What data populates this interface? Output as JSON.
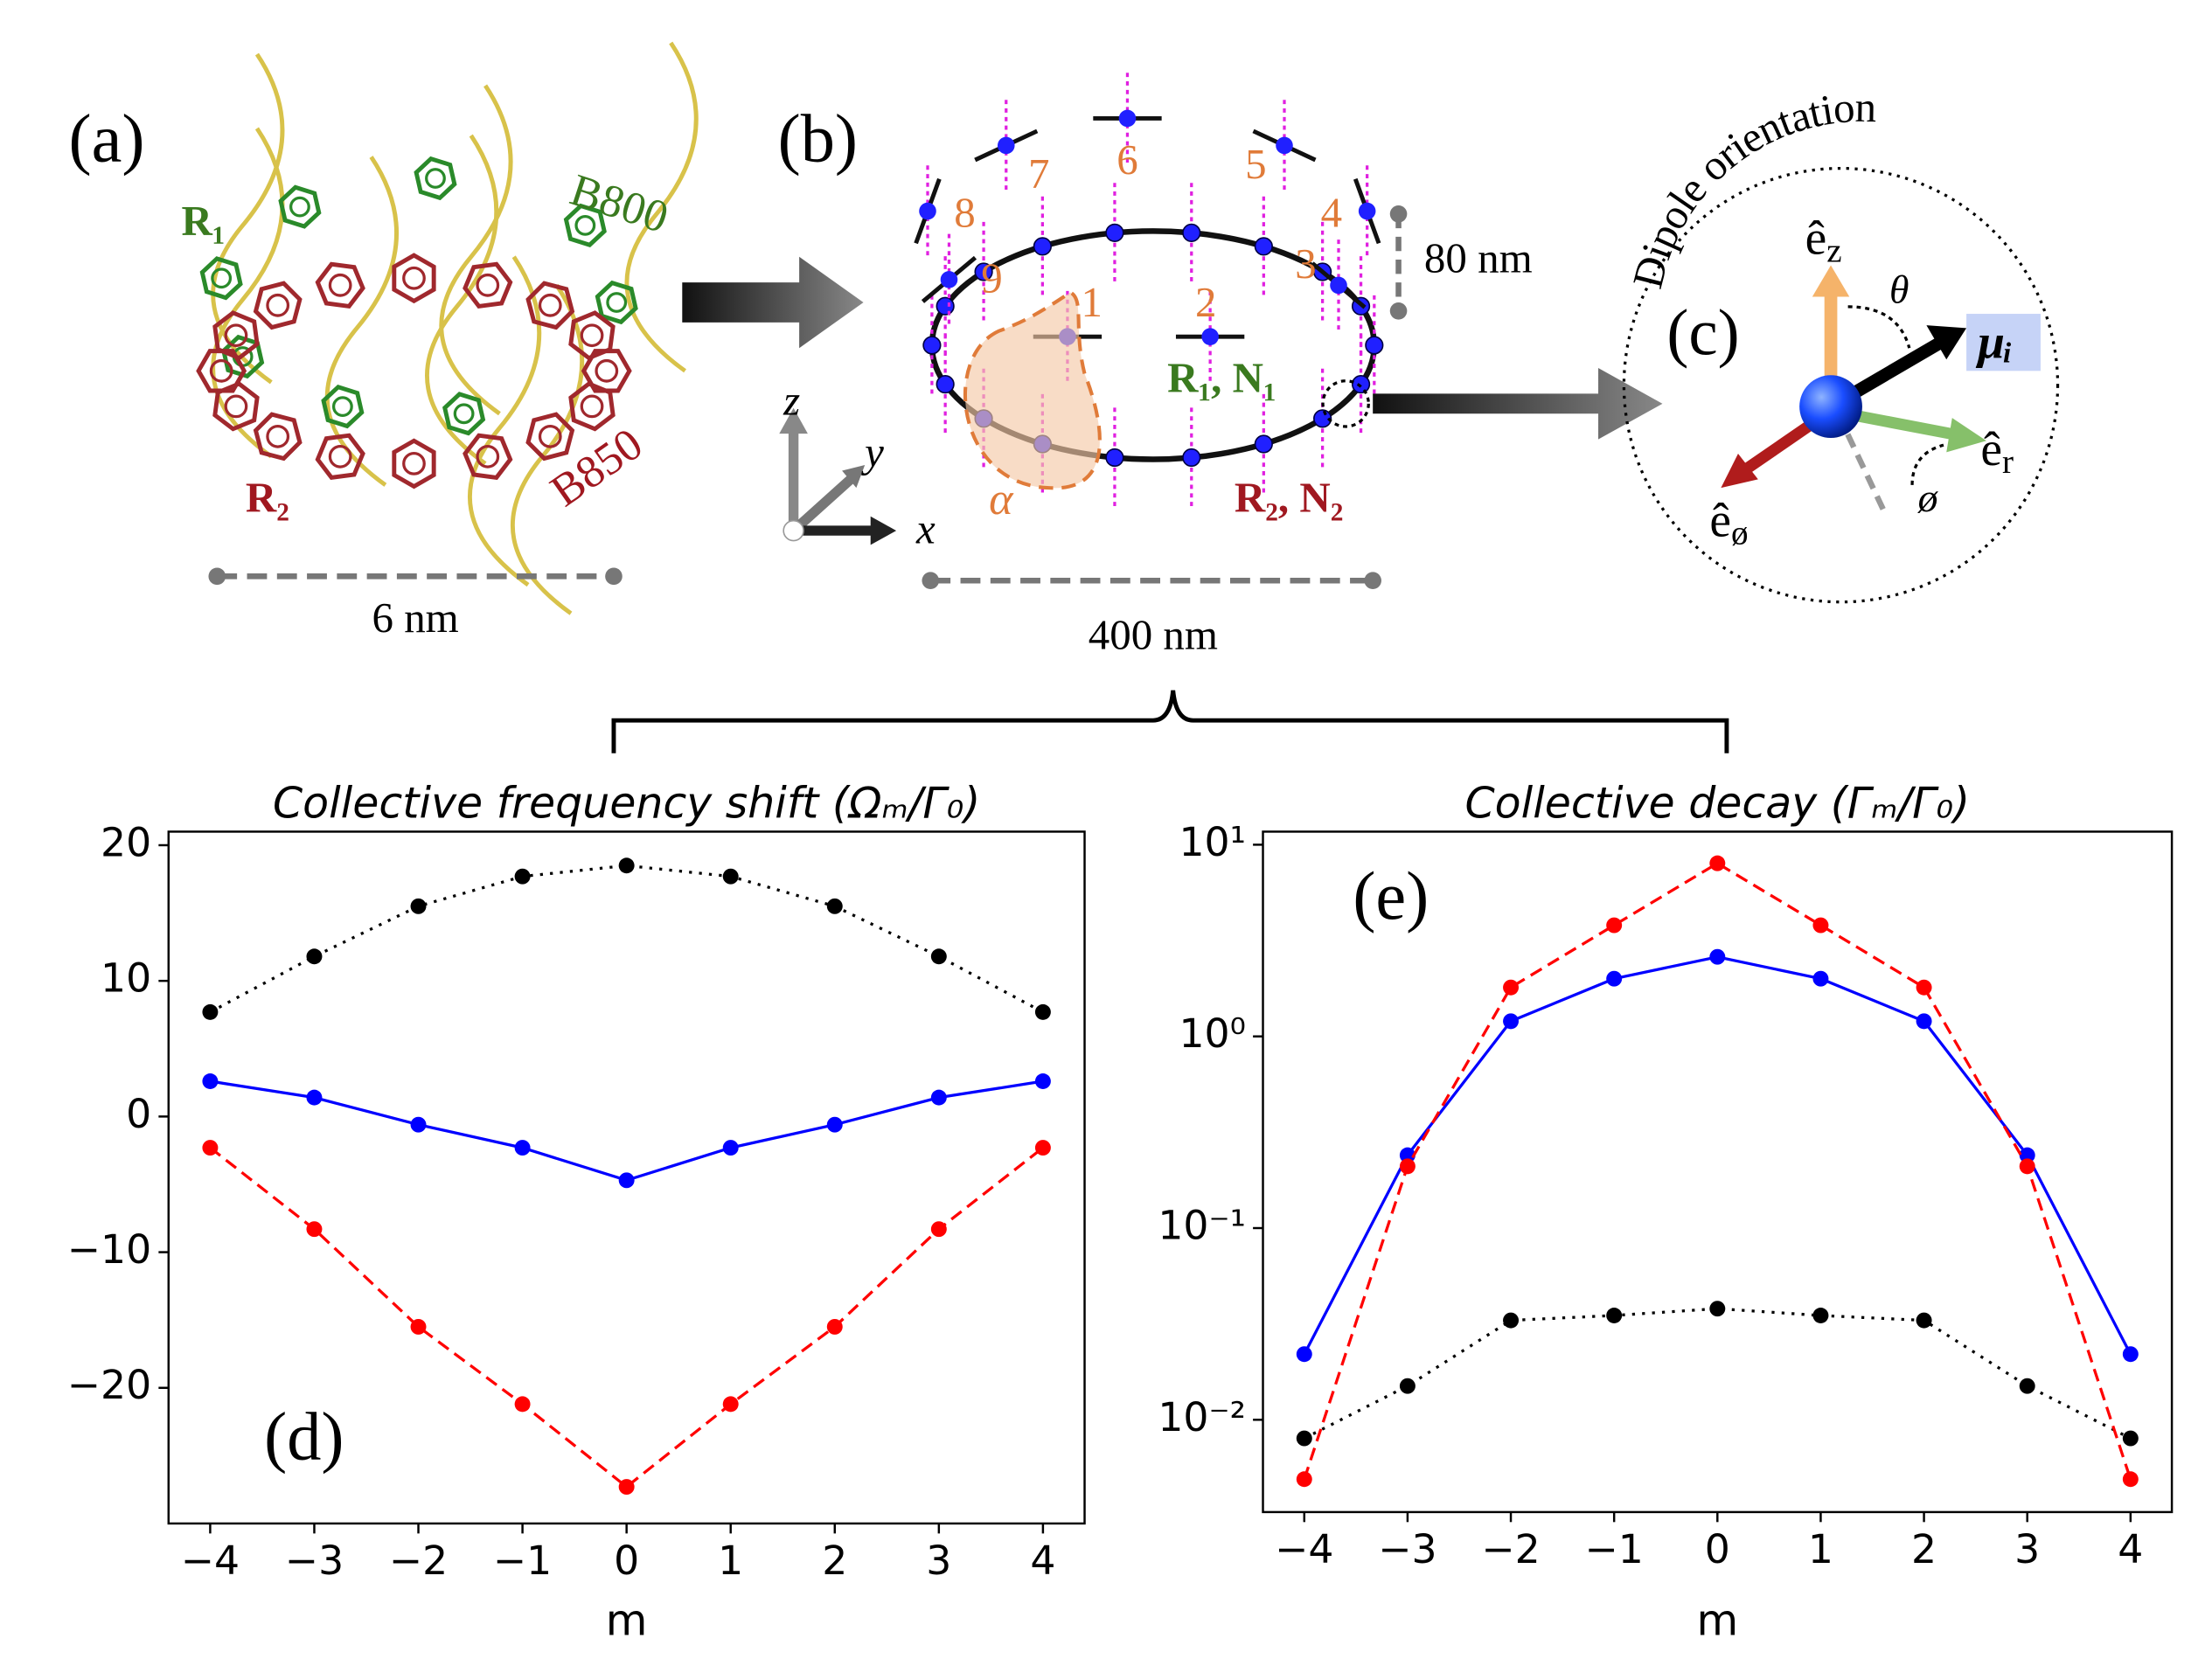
{
  "panels": {
    "a": {
      "label": "(a)",
      "b800": "B800",
      "b850": "B850",
      "r1": "R₁",
      "r2": "R₂",
      "scale": "6 nm"
    },
    "b": {
      "label": "(b)",
      "sites": [
        "1",
        "2",
        "3",
        "4",
        "5",
        "6",
        "7",
        "8",
        "9"
      ],
      "height": "80 nm",
      "width": "400 nm",
      "r1": "R₁, N₁",
      "r2": "R₂, N₂",
      "alpha": "α",
      "axes": [
        "x",
        "y",
        "z"
      ]
    },
    "c": {
      "label": "(c)",
      "title": "Dipole orientation",
      "ez": {
        "base": "ê",
        "sub": "z"
      },
      "er": {
        "base": "ê",
        "sub": "r"
      },
      "ephi": {
        "base": "ê",
        "sub": "ø"
      },
      "theta": "θ",
      "phi": "ø",
      "mu": "μᵢ"
    }
  },
  "chart_data": [
    {
      "type": "line",
      "title": "Collective frequency shift (Ωₘ/Γ₀)",
      "panel_label": "(d)",
      "x_label": "m",
      "x": [
        -4,
        -3,
        -2,
        -1,
        0,
        1,
        2,
        3,
        4
      ],
      "series": [
        {
          "color": "#000000",
          "linestyle": "dotted",
          "values": [
            7.7,
            11.8,
            15.5,
            17.7,
            18.5,
            17.7,
            15.5,
            11.8,
            7.7
          ]
        },
        {
          "color": "#0000ff",
          "linestyle": "solid",
          "values": [
            2.6,
            1.4,
            -0.6,
            -2.3,
            -4.7,
            -2.3,
            -0.6,
            1.4,
            2.6
          ]
        },
        {
          "color": "#ff0000",
          "linestyle": "dashed",
          "values": [
            -2.3,
            -8.3,
            -15.5,
            -21.2,
            -27.3,
            -21.2,
            -15.5,
            -8.3,
            -2.3
          ]
        }
      ],
      "xlim": [
        -4.4,
        4.4
      ],
      "ylim": [
        -30,
        21
      ],
      "xticks": [
        {
          "value": -4,
          "label": "−4"
        },
        {
          "value": -3,
          "label": "−3"
        },
        {
          "value": -2,
          "label": "−2"
        },
        {
          "value": -1,
          "label": "−1"
        },
        0,
        1,
        2,
        3,
        4
      ],
      "yticks": [
        {
          "value": -20,
          "label": "−20"
        },
        {
          "value": -10,
          "label": "−10"
        },
        0,
        10,
        20
      ],
      "log_y": false
    },
    {
      "type": "line",
      "title": "Collective decay (Γₘ/Γ₀)",
      "panel_label": "(e)",
      "x_label": "m",
      "x": [
        -4,
        -3,
        -2,
        -1,
        0,
        1,
        2,
        3,
        4
      ],
      "series": [
        {
          "color": "#000000",
          "linestyle": "dotted",
          "values": [
            0.008,
            0.015,
            0.033,
            0.035,
            0.038,
            0.035,
            0.033,
            0.015,
            0.008
          ]
        },
        {
          "color": "#0000ff",
          "linestyle": "solid",
          "values": [
            0.022,
            0.24,
            1.2,
            2.0,
            2.6,
            2.0,
            1.2,
            0.24,
            0.022
          ]
        },
        {
          "color": "#ff0000",
          "linestyle": "dashed",
          "values": [
            0.0049,
            0.21,
            1.8,
            3.8,
            8.0,
            3.8,
            1.8,
            0.21,
            0.0049
          ]
        }
      ],
      "xlim": [
        -4.4,
        4.4
      ],
      "ylim": [
        0.0033,
        11.7
      ],
      "xticks": [
        {
          "value": -4,
          "label": "−4"
        },
        {
          "value": -3,
          "label": "−3"
        },
        {
          "value": -2,
          "label": "−2"
        },
        {
          "value": -1,
          "label": "−1"
        },
        0,
        1,
        2,
        3,
        4
      ],
      "yticks": [
        {
          "value": 0.01,
          "label": "10⁻²"
        },
        {
          "value": 0.1,
          "label": "10⁻¹"
        },
        {
          "value": 1,
          "label": "10⁰"
        },
        {
          "value": 10,
          "label": "10¹"
        }
      ],
      "log_y": true
    }
  ]
}
